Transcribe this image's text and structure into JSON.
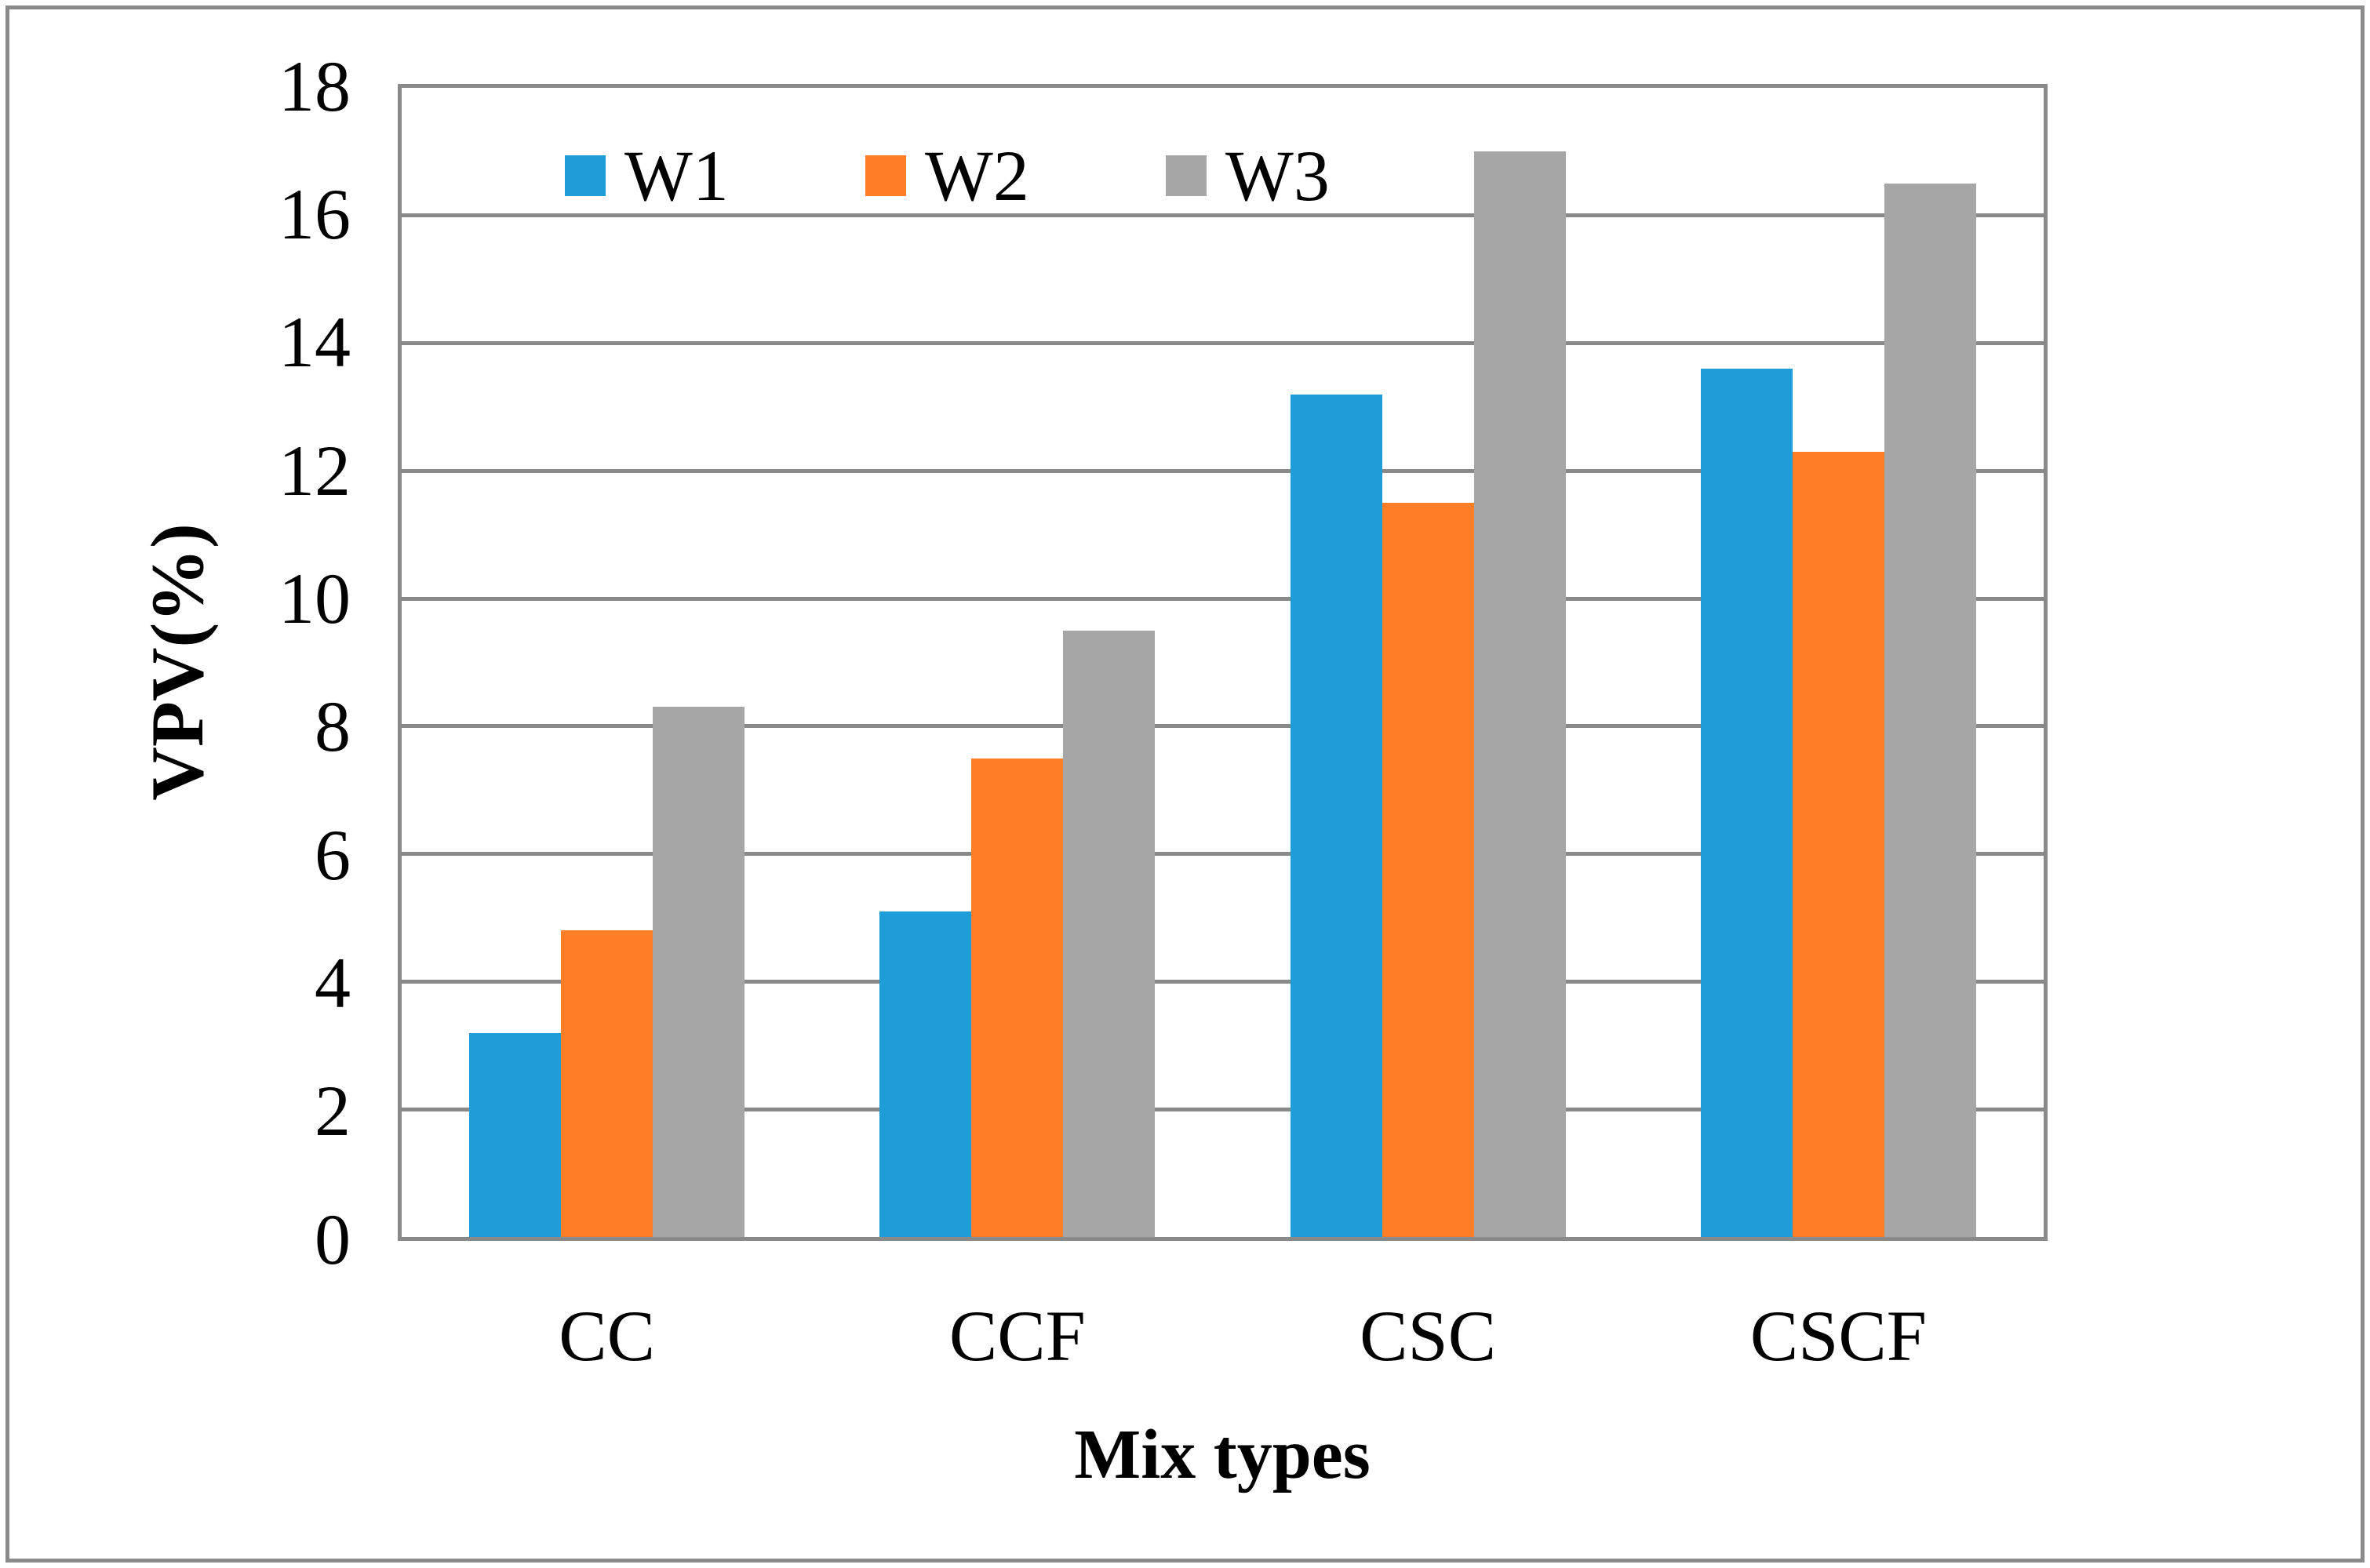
{
  "figure": {
    "background_color": "#FFFFFF",
    "border_color": "#8A8A8A",
    "gridline_color": "#898989",
    "text_color": "#000000"
  },
  "chart_data": {
    "type": "bar",
    "title": "",
    "categories": [
      "CC",
      "CCF",
      "CSC",
      "CSCF"
    ],
    "series": [
      {
        "name": "W1",
        "color": "#1F9DD9",
        "values": [
          3.2,
          5.1,
          13.2,
          13.6
        ]
      },
      {
        "name": "W2",
        "color": "#FD7E26",
        "values": [
          4.8,
          7.5,
          11.5,
          12.3
        ]
      },
      {
        "name": "W3",
        "color": "#A6A6A6",
        "values": [
          8.3,
          9.5,
          17.0,
          16.5
        ]
      }
    ],
    "xlabel": "Mix types",
    "ylabel": "VPV(%)",
    "ylim": [
      0,
      18
    ],
    "ytick_step": 2,
    "yticks": [
      0,
      2,
      4,
      6,
      8,
      10,
      12,
      14,
      16,
      18
    ],
    "grid": true,
    "legend_position": "top-inside",
    "legend_labels": [
      "W1",
      "W2",
      "W3"
    ]
  }
}
